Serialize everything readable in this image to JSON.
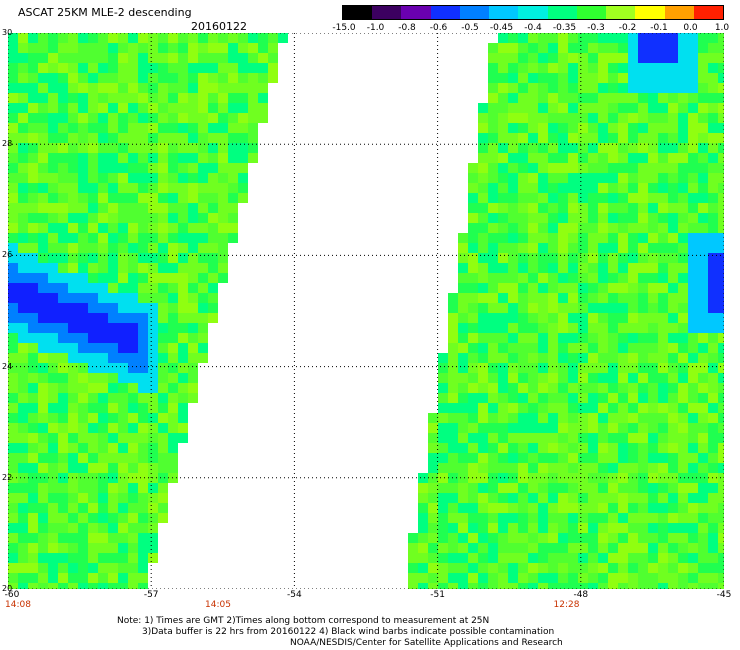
{
  "header": {
    "title": "ASCAT 25KM MLE-2 descending",
    "date": "20160122"
  },
  "colorbar": {
    "labels": [
      "-15.0",
      "-1.0",
      "-0.8",
      "-0.6",
      "-0.5",
      "-0.45",
      "-0.4",
      "-0.35",
      "-0.3",
      "-0.2",
      "-0.1",
      "0.0",
      "1.0"
    ],
    "colors": [
      "#000000",
      "#3c0060",
      "#6a00b0",
      "#1030ff",
      "#0080ff",
      "#00c8ff",
      "#00f0e0",
      "#00ff80",
      "#30ff30",
      "#a0ff20",
      "#ffff00",
      "#ffa000",
      "#ff2000"
    ]
  },
  "map": {
    "lat_labels": [
      "30",
      "28",
      "26",
      "24",
      "22",
      "20"
    ],
    "lon_labels": [
      "-60",
      "-57",
      "-54",
      "-51",
      "-48",
      "-45"
    ],
    "lat_range": [
      20,
      30
    ],
    "lon_range": [
      -60,
      -45
    ],
    "grid": true,
    "times": [
      "14:08",
      "14:05",
      "12:28"
    ],
    "time_lon": [
      -60,
      -55.6,
      -48.3
    ],
    "swath_left_east_edge": {
      "lat": [
        30,
        20
      ],
      "lon": [
        -54.2,
        -57.1
      ]
    },
    "swath_right_west_edge": {
      "lat": [
        30,
        20
      ],
      "lon": [
        -49.8,
        -51.7
      ]
    }
  },
  "notes": {
    "line1": "Note: 1) Times are GMT 2)Times along bottom correspond to measurement at 25N",
    "line2": "3)Data buffer is 22 hrs from 20160122 4) Black wind barbs indicate possible contamination",
    "line3": "NOAA/NESDIS/Center for Satellite Applications and Research"
  }
}
